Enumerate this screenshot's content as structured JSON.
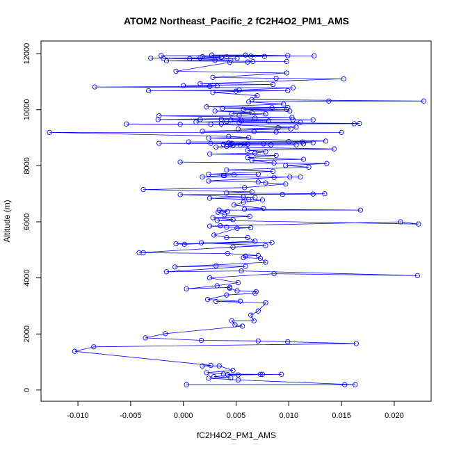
{
  "chart_data": {
    "type": "scatter",
    "title": "ATOM2 Northeast_Pacific_2 fC2H4O2_PM1_AMS",
    "xlabel": "fC2H4O2_PM1_AMS",
    "ylabel": "Altitude (m)",
    "xlim": [
      -0.0135,
      0.0235
    ],
    "ylim": [
      -400,
      12450
    ],
    "xticks": [
      -0.01,
      -0.005,
      0.0,
      0.005,
      0.01,
      0.015,
      0.02
    ],
    "xtick_labels": [
      "-0.010",
      "-0.005",
      "0.000",
      "0.005",
      "0.010",
      "0.015",
      "0.020"
    ],
    "yticks": [
      0,
      2000,
      4000,
      6000,
      8000,
      10000,
      12000
    ],
    "ytick_labels": [
      "0",
      "2000",
      "4000",
      "6000",
      "8000",
      "10000",
      "12000"
    ],
    "grid": false,
    "connected": true,
    "series": [
      {
        "color": "#0000ff",
        "marker": "open-circle",
        "points": [
          [
            0.0003,
            190
          ],
          [
            0.0153,
            190
          ],
          [
            0.0163,
            190
          ],
          [
            0.0052,
            360
          ],
          [
            0.0024,
            420
          ],
          [
            0.0045,
            430
          ],
          [
            0.0029,
            480
          ],
          [
            0.0052,
            540
          ],
          [
            0.0093,
            560
          ],
          [
            0.0042,
            550
          ],
          [
            0.0073,
            560
          ],
          [
            0.0075,
            560
          ],
          [
            0.0038,
            570
          ],
          [
            0.0022,
            620
          ],
          [
            0.0047,
            700
          ],
          [
            0.0034,
            860
          ],
          [
            0.0018,
            860
          ],
          [
            0.0026,
            880
          ],
          [
            -0.0103,
            1380
          ],
          [
            -0.0085,
            1540
          ],
          [
            0.0164,
            1660
          ],
          [
            0.0099,
            1720
          ],
          [
            0.0071,
            1750
          ],
          [
            0.0017,
            1770
          ],
          [
            -0.0036,
            1860
          ],
          [
            -0.0017,
            2010
          ],
          [
            0.0056,
            2280
          ],
          [
            0.0049,
            2330
          ],
          [
            0.0046,
            2470
          ],
          [
            0.0067,
            2470
          ],
          [
            0.0064,
            2670
          ],
          [
            0.0071,
            2820
          ],
          [
            0.0078,
            3110
          ],
          [
            0.0031,
            3160
          ],
          [
            0.0054,
            3170
          ],
          [
            0.0023,
            3230
          ],
          [
            0.0041,
            3390
          ],
          [
            0.0068,
            3450
          ],
          [
            0.0069,
            3510
          ],
          [
            0.0051,
            3540
          ],
          [
            0.0044,
            3630
          ],
          [
            0.0044,
            3660
          ],
          [
            0.0003,
            3610
          ],
          [
            0.0032,
            3720
          ],
          [
            0.0052,
            3830
          ],
          [
            0.0025,
            4000
          ],
          [
            0.0086,
            4150
          ],
          [
            0.0222,
            4080
          ],
          [
            0.0055,
            4250
          ],
          [
            -0.0016,
            4220
          ],
          [
            0.0059,
            4410
          ],
          [
            0.0031,
            4430
          ],
          [
            -0.0008,
            4390
          ],
          [
            0.0078,
            4560
          ],
          [
            0.0073,
            4700
          ],
          [
            0.0057,
            4720
          ],
          [
            0.0059,
            4780
          ],
          [
            0.0071,
            4800
          ],
          [
            0.0042,
            4870
          ],
          [
            -0.0038,
            4900
          ],
          [
            -0.0042,
            4900
          ],
          [
            0.0047,
            5100
          ],
          [
            0.0078,
            5150
          ],
          [
            0.0017,
            5250
          ],
          [
            0.0084,
            5260
          ],
          [
            -0.0007,
            5220
          ],
          [
            0.0001,
            5200
          ],
          [
            0.0068,
            5310
          ],
          [
            0.0061,
            5440
          ],
          [
            0.0041,
            5440
          ],
          [
            0.0029,
            5530
          ],
          [
            0.0051,
            5770
          ],
          [
            0.0064,
            5790
          ],
          [
            0.0041,
            5810
          ],
          [
            0.0025,
            5850
          ],
          [
            0.0035,
            5860
          ],
          [
            0.0206,
            6000
          ],
          [
            0.0223,
            5920
          ],
          [
            0.0032,
            6050
          ],
          [
            0.0047,
            6080
          ],
          [
            0.0028,
            6150
          ],
          [
            0.0063,
            6190
          ],
          [
            0.0039,
            6250
          ],
          [
            0.0033,
            6340
          ],
          [
            0.0042,
            6370
          ],
          [
            0.0034,
            6420
          ],
          [
            0.0168,
            6420
          ],
          [
            0.0058,
            6450
          ],
          [
            0.0076,
            6480
          ],
          [
            0.0048,
            6600
          ],
          [
            0.0057,
            6700
          ],
          [
            0.0075,
            6780
          ],
          [
            0.0062,
            6800
          ],
          [
            0.0025,
            6840
          ],
          [
            0.0068,
            6870
          ],
          [
            0.0057,
            6890
          ],
          [
            -0.0003,
            6970
          ],
          [
            0.0094,
            6980
          ],
          [
            0.0123,
            6990
          ],
          [
            0.0134,
            7000
          ],
          [
            0.0041,
            7030
          ],
          [
            0.0065,
            7070
          ],
          [
            -0.0038,
            7150
          ],
          [
            0.0058,
            7220
          ],
          [
            0.0097,
            7350
          ],
          [
            0.0078,
            7390
          ],
          [
            0.0071,
            7420
          ],
          [
            0.0024,
            7460
          ],
          [
            0.0086,
            7580
          ],
          [
            0.0101,
            7600
          ],
          [
            0.0111,
            7600
          ],
          [
            0.0018,
            7600
          ],
          [
            0.0038,
            7650
          ],
          [
            0.0039,
            7650
          ],
          [
            0.0048,
            7680
          ],
          [
            0.0071,
            7700
          ],
          [
            0.0024,
            7700
          ],
          [
            0.0085,
            7800
          ],
          [
            0.0041,
            7850
          ],
          [
            0.0119,
            7950
          ],
          [
            0.0097,
            8010
          ],
          [
            0.0136,
            8080
          ],
          [
            -0.0003,
            8130
          ],
          [
            0.0086,
            8100
          ],
          [
            0.0065,
            8190
          ],
          [
            0.0114,
            8230
          ],
          [
            0.0061,
            8290
          ],
          [
            0.0088,
            8370
          ],
          [
            0.0025,
            8420
          ],
          [
            0.0068,
            8450
          ],
          [
            0.0078,
            8500
          ],
          [
            0.0061,
            8550
          ],
          [
            0.0143,
            8600
          ],
          [
            0.0031,
            8670
          ],
          [
            0.0041,
            8690
          ],
          [
            0.0047,
            8720
          ],
          [
            0.0054,
            8740
          ],
          [
            0.0107,
            8750
          ],
          [
            0.0083,
            8750
          ],
          [
            0.0038,
            8760
          ],
          [
            0.0061,
            8770
          ],
          [
            0.0045,
            8760
          ],
          [
            0.0058,
            8780
          ],
          [
            0.0076,
            8780
          ],
          [
            0.0114,
            8780
          ],
          [
            -0.0023,
            8800
          ],
          [
            0.0046,
            8800
          ],
          [
            0.0026,
            8800
          ],
          [
            0.0043,
            8810
          ],
          [
            0.0123,
            8820
          ],
          [
            0.0113,
            8850
          ],
          [
            0.0005,
            8850
          ],
          [
            0.01,
            8860
          ],
          [
            0.0135,
            8880
          ],
          [
            0.0024,
            8990
          ],
          [
            0.0062,
            9010
          ],
          [
            0.0043,
            9050
          ],
          [
            -0.0127,
            9190
          ],
          [
            0.015,
            9190
          ],
          [
            0.0088,
            9200
          ],
          [
            0.0067,
            9220
          ],
          [
            0.0018,
            9230
          ],
          [
            0.0102,
            9320
          ],
          [
            0.0052,
            9310
          ],
          [
            0.009,
            9360
          ],
          [
            0.0107,
            9380
          ],
          [
            0.0026,
            9480
          ],
          [
            -0.0054,
            9490
          ],
          [
            -0.0003,
            9480
          ],
          [
            0.0036,
            9490
          ],
          [
            0.0162,
            9500
          ],
          [
            0.0167,
            9510
          ],
          [
            0.0053,
            9540
          ],
          [
            0.0111,
            9550
          ],
          [
            0.0012,
            9560
          ],
          [
            0.0041,
            9580
          ],
          [
            0.0081,
            9600
          ],
          [
            0.0055,
            9620
          ],
          [
            0.0045,
            9630
          ],
          [
            0.0104,
            9640
          ],
          [
            0.0123,
            9640
          ],
          [
            0.0036,
            9660
          ],
          [
            0.0016,
            9650
          ],
          [
            -0.0024,
            9650
          ],
          [
            0.0068,
            9700
          ],
          [
            0.0103,
            9720
          ],
          [
            -0.0023,
            9780
          ],
          [
            0.0053,
            9800
          ],
          [
            0.0078,
            9850
          ],
          [
            0.0046,
            9860
          ],
          [
            0.0065,
            9900
          ],
          [
            0.003,
            9950
          ],
          [
            0.0101,
            9950
          ],
          [
            0.0057,
            10010
          ],
          [
            0.0098,
            10010
          ],
          [
            0.0037,
            10050
          ],
          [
            0.0084,
            10070
          ],
          [
            0.0099,
            10080
          ],
          [
            0.0022,
            10100
          ],
          [
            0.0095,
            10200
          ],
          [
            0.0062,
            10280
          ],
          [
            0.0138,
            10310
          ],
          [
            0.0228,
            10310
          ],
          [
            0.0065,
            10360
          ],
          [
            0.007,
            10500
          ],
          [
            0.0028,
            10620
          ],
          [
            0.005,
            10660
          ],
          [
            0.0099,
            10680
          ],
          [
            -0.0033,
            10680
          ],
          [
            0.0053,
            10700
          ],
          [
            0.0104,
            10780
          ],
          [
            -0.0084,
            10810
          ],
          [
            0.0025,
            10830
          ],
          [
            0.0032,
            10850
          ],
          [
            0.0,
            10860
          ],
          [
            0.0085,
            10900
          ],
          [
            0.0016,
            10930
          ],
          [
            0.0152,
            11100
          ],
          [
            0.0088,
            11120
          ],
          [
            0.0028,
            11150
          ],
          [
            0.0098,
            11310
          ],
          [
            -0.0007,
            11370
          ],
          [
            0.0044,
            11690
          ],
          [
            0.0061,
            11700
          ],
          [
            0.0066,
            11720
          ],
          [
            0.0098,
            11720
          ],
          [
            -0.0016,
            11740
          ],
          [
            0.003,
            11760
          ],
          [
            0.0045,
            11770
          ],
          [
            0.0006,
            11820
          ],
          [
            -0.0019,
            11830
          ],
          [
            0.0051,
            11830
          ],
          [
            -0.0031,
            11840
          ],
          [
            0.0016,
            11850
          ],
          [
            0.0036,
            11870
          ],
          [
            0.0018,
            11890
          ],
          [
            0.0041,
            11890
          ],
          [
            0.0077,
            11900
          ],
          [
            0.0064,
            11910
          ],
          [
            0.0124,
            11920
          ],
          [
            -0.0021,
            11930
          ],
          [
            0.0099,
            11930
          ],
          [
            0.0059,
            11950
          ],
          [
            0.0027,
            11950
          ]
        ]
      }
    ]
  }
}
